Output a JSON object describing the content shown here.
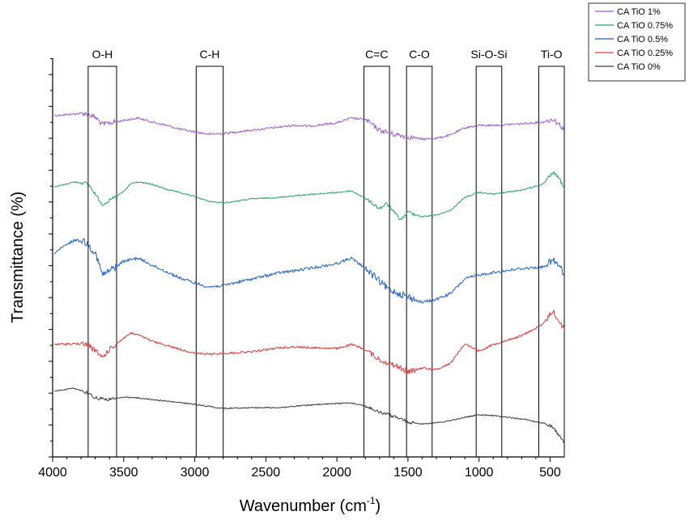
{
  "chart_data": {
    "type": "line",
    "xlabel": "Wavenumber (cm",
    "xlabel_superscript": "-1",
    "xlabel_suffix": ")",
    "ylabel": "Transmittance (%)",
    "xlim": [
      4000,
      400
    ],
    "x_reversed": true,
    "x_ticks": [
      4000,
      3500,
      3000,
      2500,
      2000,
      1500,
      1000,
      500
    ],
    "y_tick_labels_shown": false,
    "grid": false,
    "legend_position": "top-right",
    "bands": [
      {
        "label": "O-H",
        "from": 3750,
        "to": 3550
      },
      {
        "label": "C-H",
        "from": 2990,
        "to": 2800
      },
      {
        "label": "C=C",
        "from": 1810,
        "to": 1630
      },
      {
        "label": "C-O",
        "from": 1510,
        "to": 1330
      },
      {
        "label": "Si-O-Si",
        "from": 1020,
        "to": 840
      },
      {
        "label": "Ti-O",
        "from": 580,
        "to": 400
      }
    ],
    "series": [
      {
        "name": "CA TiO 1%",
        "color": "#9b59d0",
        "noise": 2.5,
        "points": [
          [
            4000,
            43
          ],
          [
            3850,
            41
          ],
          [
            3780,
            40
          ],
          [
            3700,
            45
          ],
          [
            3650,
            54
          ],
          [
            3600,
            52
          ],
          [
            3500,
            49
          ],
          [
            3400,
            46
          ],
          [
            3300,
            51
          ],
          [
            3200,
            55
          ],
          [
            3100,
            60
          ],
          [
            3000,
            63
          ],
          [
            2900,
            66
          ],
          [
            2800,
            65
          ],
          [
            2600,
            61
          ],
          [
            2400,
            57
          ],
          [
            2300,
            55
          ],
          [
            2200,
            56
          ],
          [
            2000,
            52
          ],
          [
            1900,
            46
          ],
          [
            1800,
            48
          ],
          [
            1700,
            61
          ],
          [
            1600,
            66
          ],
          [
            1500,
            69
          ],
          [
            1400,
            72
          ],
          [
            1300,
            71
          ],
          [
            1200,
            67
          ],
          [
            1100,
            58
          ],
          [
            1000,
            55
          ],
          [
            900,
            55
          ],
          [
            700,
            53
          ],
          [
            550,
            51
          ],
          [
            480,
            47
          ],
          [
            430,
            55
          ],
          [
            400,
            60
          ]
        ]
      },
      {
        "name": "CA TiO 0.75%",
        "color": "#27a35f",
        "noise": 1.5,
        "points": [
          [
            4000,
            132
          ],
          [
            3850,
            125
          ],
          [
            3750,
            127
          ],
          [
            3700,
            140
          ],
          [
            3650,
            153
          ],
          [
            3600,
            148
          ],
          [
            3500,
            137
          ],
          [
            3450,
            127
          ],
          [
            3400,
            125
          ],
          [
            3300,
            128
          ],
          [
            3200,
            134
          ],
          [
            3000,
            143
          ],
          [
            2900,
            149
          ],
          [
            2800,
            151
          ],
          [
            2600,
            146
          ],
          [
            2400,
            144
          ],
          [
            2300,
            142
          ],
          [
            2000,
            138
          ],
          [
            1900,
            136
          ],
          [
            1800,
            145
          ],
          [
            1700,
            158
          ],
          [
            1650,
            152
          ],
          [
            1550,
            172
          ],
          [
            1500,
            162
          ],
          [
            1400,
            168
          ],
          [
            1300,
            166
          ],
          [
            1200,
            160
          ],
          [
            1100,
            144
          ],
          [
            1000,
            138
          ],
          [
            900,
            140
          ],
          [
            700,
            135
          ],
          [
            550,
            128
          ],
          [
            480,
            113
          ],
          [
            430,
            122
          ],
          [
            400,
            135
          ]
        ]
      },
      {
        "name": "CA TiO 0.5%",
        "color": "#1f5fc7",
        "noise": 3.5,
        "points": [
          [
            4000,
            214
          ],
          [
            3850,
            197
          ],
          [
            3780,
            198
          ],
          [
            3700,
            212
          ],
          [
            3650,
            240
          ],
          [
            3600,
            235
          ],
          [
            3500,
            223
          ],
          [
            3400,
            219
          ],
          [
            3300,
            228
          ],
          [
            3200,
            236
          ],
          [
            3100,
            244
          ],
          [
            3000,
            250
          ],
          [
            2900,
            255
          ],
          [
            2800,
            253
          ],
          [
            2600,
            245
          ],
          [
            2400,
            237
          ],
          [
            2300,
            235
          ],
          [
            2000,
            226
          ],
          [
            1900,
            219
          ],
          [
            1800,
            232
          ],
          [
            1700,
            248
          ],
          [
            1650,
            256
          ],
          [
            1600,
            260
          ],
          [
            1500,
            267
          ],
          [
            1400,
            274
          ],
          [
            1300,
            270
          ],
          [
            1200,
            263
          ],
          [
            1100,
            245
          ],
          [
            1000,
            240
          ],
          [
            900,
            237
          ],
          [
            700,
            232
          ],
          [
            550,
            230
          ],
          [
            480,
            222
          ],
          [
            430,
            230
          ],
          [
            400,
            242
          ]
        ]
      },
      {
        "name": "CA TiO 0.25%",
        "color": "#d93a3a",
        "noise": 2.5,
        "points": [
          [
            4000,
            326
          ],
          [
            3850,
            325
          ],
          [
            3750,
            326
          ],
          [
            3700,
            334
          ],
          [
            3650,
            342
          ],
          [
            3600,
            332
          ],
          [
            3500,
            318
          ],
          [
            3450,
            312
          ],
          [
            3400,
            314
          ],
          [
            3300,
            322
          ],
          [
            3200,
            327
          ],
          [
            3000,
            337
          ],
          [
            2900,
            338
          ],
          [
            2800,
            337
          ],
          [
            2600,
            335
          ],
          [
            2400,
            330
          ],
          [
            2300,
            329
          ],
          [
            2000,
            331
          ],
          [
            1900,
            326
          ],
          [
            1800,
            332
          ],
          [
            1700,
            345
          ],
          [
            1650,
            348
          ],
          [
            1550,
            355
          ],
          [
            1500,
            360
          ],
          [
            1400,
            355
          ],
          [
            1300,
            357
          ],
          [
            1200,
            349
          ],
          [
            1100,
            325
          ],
          [
            1000,
            334
          ],
          [
            900,
            326
          ],
          [
            700,
            315
          ],
          [
            550,
            301
          ],
          [
            480,
            284
          ],
          [
            430,
            300
          ],
          [
            400,
            306
          ]
        ]
      },
      {
        "name": "CA TiO 0%",
        "color": "#3a3a3a",
        "noise": 1.5,
        "points": [
          [
            4000,
            384
          ],
          [
            3850,
            380
          ],
          [
            3750,
            386
          ],
          [
            3700,
            392
          ],
          [
            3600,
            394
          ],
          [
            3500,
            391
          ],
          [
            3400,
            392
          ],
          [
            3200,
            396
          ],
          [
            3000,
            400
          ],
          [
            2800,
            405
          ],
          [
            2600,
            404
          ],
          [
            2400,
            404
          ],
          [
            2200,
            401
          ],
          [
            2000,
            399
          ],
          [
            1900,
            398
          ],
          [
            1800,
            402
          ],
          [
            1700,
            410
          ],
          [
            1650,
            412
          ],
          [
            1550,
            418
          ],
          [
            1500,
            422
          ],
          [
            1400,
            424
          ],
          [
            1300,
            423
          ],
          [
            1200,
            420
          ],
          [
            1100,
            416
          ],
          [
            1000,
            413
          ],
          [
            900,
            414
          ],
          [
            700,
            418
          ],
          [
            550,
            423
          ],
          [
            480,
            428
          ],
          [
            430,
            440
          ],
          [
            400,
            448
          ]
        ]
      }
    ]
  }
}
